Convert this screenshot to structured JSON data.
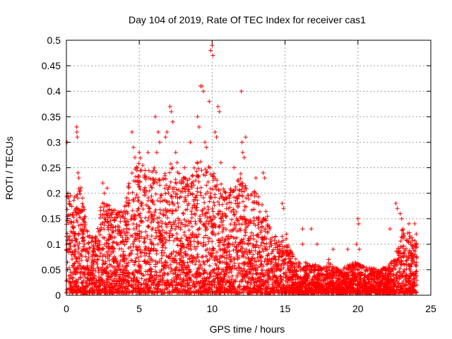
{
  "chart_data": {
    "type": "scatter",
    "title": "Day 104 of 2019, Rate Of TEC Index for receiver cas1",
    "xlabel": "GPS time / hours",
    "ylabel": "ROTI / TECUs",
    "xlim": [
      0,
      25
    ],
    "ylim": [
      0,
      0.5
    ],
    "xticks": [
      0,
      5,
      10,
      15,
      20,
      25
    ],
    "yticks": [
      0,
      0.05,
      0.1,
      0.15,
      0.2,
      0.25,
      0.3,
      0.35,
      0.4,
      0.45,
      0.5
    ],
    "grid": true,
    "marker": "plus",
    "series_color": "#ff0000",
    "envelope": {
      "description": "approximate upper extent of the dense point cloud by hour",
      "x": [
        0,
        0.5,
        1,
        1.5,
        2,
        2.5,
        3,
        3.5,
        4,
        4.5,
        5,
        5.5,
        6,
        6.5,
        7,
        7.5,
        8,
        8.5,
        9,
        9.5,
        10,
        10.5,
        11,
        11.5,
        12,
        12.5,
        13,
        13.5,
        14,
        14.5,
        15,
        15.5,
        16,
        16.5,
        17,
        17.5,
        18,
        18.5,
        19,
        19.5,
        20,
        20.5,
        21,
        21.5,
        22,
        22.5,
        23,
        23.5,
        24
      ],
      "y": [
        0.2,
        0.19,
        0.22,
        0.12,
        0.11,
        0.2,
        0.17,
        0.16,
        0.18,
        0.24,
        0.27,
        0.24,
        0.25,
        0.22,
        0.26,
        0.24,
        0.23,
        0.23,
        0.26,
        0.26,
        0.25,
        0.22,
        0.2,
        0.21,
        0.24,
        0.2,
        0.2,
        0.18,
        0.14,
        0.1,
        0.12,
        0.08,
        0.06,
        0.06,
        0.06,
        0.05,
        0.06,
        0.05,
        0.05,
        0.06,
        0.06,
        0.05,
        0.05,
        0.05,
        0.05,
        0.07,
        0.13,
        0.12,
        0.1
      ]
    },
    "points": [
      [
        0.05,
        0.3
      ],
      [
        0.1,
        0.2
      ],
      [
        0.12,
        0.19
      ],
      [
        0.2,
        0.18
      ],
      [
        0.7,
        0.33
      ],
      [
        0.72,
        0.32
      ],
      [
        0.75,
        0.31
      ],
      [
        0.8,
        0.24
      ],
      [
        0.85,
        0.23
      ],
      [
        2.5,
        0.22
      ],
      [
        2.6,
        0.2
      ],
      [
        2.8,
        0.21
      ],
      [
        4.5,
        0.32
      ],
      [
        4.6,
        0.29
      ],
      [
        4.7,
        0.27
      ],
      [
        5.0,
        0.28
      ],
      [
        5.6,
        0.28
      ],
      [
        6.1,
        0.35
      ],
      [
        6.2,
        0.28
      ],
      [
        6.3,
        0.32
      ],
      [
        6.4,
        0.3
      ],
      [
        6.8,
        0.31
      ],
      [
        6.9,
        0.32
      ],
      [
        7.1,
        0.37
      ],
      [
        7.2,
        0.36
      ],
      [
        7.3,
        0.34
      ],
      [
        7.5,
        0.28
      ],
      [
        7.6,
        0.26
      ],
      [
        8.1,
        0.25
      ],
      [
        8.5,
        0.3
      ],
      [
        9.0,
        0.35
      ],
      [
        9.1,
        0.33
      ],
      [
        9.2,
        0.41
      ],
      [
        9.3,
        0.41
      ],
      [
        9.4,
        0.4
      ],
      [
        9.5,
        0.3
      ],
      [
        9.6,
        0.29
      ],
      [
        9.8,
        0.38
      ],
      [
        9.9,
        0.48
      ],
      [
        10.0,
        0.49
      ],
      [
        10.05,
        0.47
      ],
      [
        10.2,
        0.32
      ],
      [
        10.3,
        0.31
      ],
      [
        10.4,
        0.37
      ],
      [
        10.5,
        0.36
      ],
      [
        10.6,
        0.26
      ],
      [
        11.5,
        0.25
      ],
      [
        12.0,
        0.4
      ],
      [
        12.05,
        0.3
      ],
      [
        12.1,
        0.28
      ],
      [
        12.2,
        0.27
      ],
      [
        12.3,
        0.31
      ],
      [
        13.0,
        0.23
      ],
      [
        13.5,
        0.24
      ],
      [
        13.6,
        0.23
      ],
      [
        14.8,
        0.18
      ],
      [
        14.9,
        0.17
      ],
      [
        15.1,
        0.12
      ],
      [
        16.2,
        0.13
      ],
      [
        16.8,
        0.13
      ],
      [
        17.2,
        0.1
      ],
      [
        18.3,
        0.09
      ],
      [
        18.0,
        0.07
      ],
      [
        19.3,
        0.09
      ],
      [
        20.0,
        0.15
      ],
      [
        20.05,
        0.14
      ],
      [
        19.9,
        0.1
      ],
      [
        20.1,
        0.09
      ],
      [
        22.2,
        0.13
      ],
      [
        22.6,
        0.18
      ],
      [
        22.7,
        0.17
      ],
      [
        23.0,
        0.15
      ],
      [
        23.5,
        0.14
      ],
      [
        23.9,
        0.14
      ],
      [
        24.0,
        0.12
      ],
      [
        16.2,
        0.1
      ],
      [
        22.9,
        0.16
      ]
    ]
  }
}
